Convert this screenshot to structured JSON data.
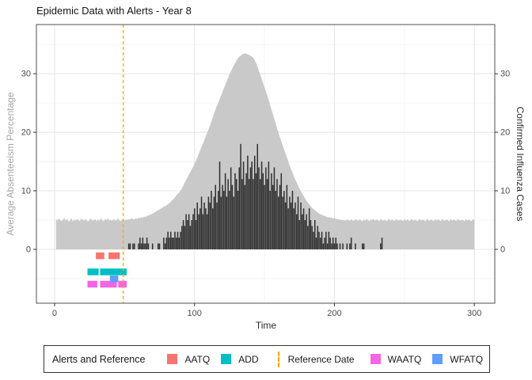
{
  "chart_data": {
    "type": "bar",
    "title": "Epidemic Data with Alerts - Year 8",
    "xlabel": "Time",
    "ylabel_left": "Average Absenteeism Percentage",
    "ylabel_right": "Confirmed Influenza Cases",
    "time_start": 1,
    "xlim": [
      -13,
      314.6
    ],
    "ylim": [
      -9.2,
      38.4
    ],
    "x_ticks": [
      0,
      100,
      200,
      300
    ],
    "x_minor": [
      50,
      150,
      250
    ],
    "y_ticks": [
      0,
      10,
      20,
      30
    ],
    "y_minor": [
      -5,
      5,
      15,
      25,
      35
    ],
    "grid": true,
    "legend_position": "bottom",
    "reference_date": 49,
    "alert_tile_height": 1.15,
    "series": [
      {
        "name": "Average Absenteeism Percentage",
        "subtype": "area",
        "axis": "left",
        "color": "#c9c9c9",
        "values": [
          5.2,
          4.9,
          5.3,
          5.0,
          4.8,
          5.1,
          5.3,
          4.9,
          5.2,
          4.7,
          5.0,
          5.3,
          4.8,
          5.1,
          4.9,
          5.2,
          5.0,
          4.8,
          5.3,
          5.1,
          4.9,
          5.2,
          5.0,
          4.7,
          5.1,
          5.3,
          4.9,
          5.0,
          5.2,
          4.8,
          5.1,
          4.9,
          5.3,
          5.0,
          4.8,
          5.2,
          5.0,
          5.3,
          4.9,
          5.1,
          4.8,
          5.2,
          5.0,
          4.9,
          5.3,
          5.1,
          4.8,
          5.0,
          5.2,
          4.9,
          5.1,
          5.0,
          5.2,
          5.1,
          5.3,
          5.2,
          5.1,
          5.3,
          5.2,
          5.4,
          5.3,
          5.5,
          5.4,
          5.6,
          5.5,
          5.7,
          5.8,
          5.9,
          6.0,
          6.1,
          6.2,
          6.4,
          6.5,
          6.7,
          6.8,
          7.0,
          7.1,
          7.3,
          7.4,
          7.5,
          7.7,
          7.9,
          8.1,
          8.4,
          8.6,
          8.9,
          9.2,
          9.5,
          9.7,
          10.0,
          10.4,
          10.9,
          11.4,
          11.9,
          12.3,
          12.8,
          13.2,
          13.7,
          14.1,
          14.6,
          15.1,
          15.7,
          16.3,
          16.9,
          17.5,
          18.1,
          18.7,
          19.3,
          19.9,
          20.5,
          21.1,
          21.8,
          22.5,
          23.2,
          23.9,
          24.5,
          25.1,
          25.7,
          26.3,
          26.9,
          27.5,
          28.1,
          28.7,
          29.3,
          29.9,
          30.4,
          30.9,
          31.4,
          31.8,
          32.2,
          32.6,
          32.9,
          33.1,
          33.3,
          33.4,
          33.5,
          33.4,
          33.3,
          33.2,
          33.1,
          32.9,
          32.7,
          32.3,
          31.8,
          31.2,
          30.5,
          29.8,
          29.1,
          28.4,
          27.7,
          27.0,
          26.3,
          25.5,
          24.7,
          23.9,
          23.1,
          22.3,
          21.5,
          20.7,
          19.9,
          19.2,
          18.5,
          17.8,
          17.1,
          16.4,
          15.7,
          15.0,
          14.3,
          13.7,
          13.1,
          12.5,
          11.9,
          11.4,
          10.9,
          10.4,
          9.9,
          9.5,
          9.1,
          8.7,
          8.3,
          8.0,
          7.7,
          7.4,
          7.1,
          6.9,
          6.7,
          6.5,
          6.3,
          6.1,
          6.0,
          5.9,
          5.8,
          5.7,
          5.6,
          5.5,
          5.5,
          5.4,
          5.4,
          5.3,
          5.3,
          5.2,
          5.2,
          5.1,
          5.1,
          5.0,
          5.0,
          5.0,
          4.9,
          5.1,
          5.0,
          4.9,
          5.1,
          5.0,
          4.8,
          5.2,
          5.0,
          4.9,
          5.1,
          5.0,
          4.8,
          5.1,
          4.9,
          5.2,
          5.0,
          4.8,
          5.1,
          5.0,
          5.2,
          4.9,
          5.1,
          5.0,
          4.8,
          5.2,
          5.0,
          4.9,
          5.1,
          4.8,
          5.0,
          5.2,
          4.9,
          5.1,
          5.0,
          4.8,
          5.2,
          5.0,
          4.9,
          5.1,
          5.0,
          4.8,
          5.2,
          4.9,
          5.1,
          5.0,
          4.8,
          5.2,
          5.0,
          4.9,
          5.1,
          4.8,
          5.0,
          5.2,
          4.9,
          5.1,
          5.0,
          4.8,
          5.2,
          5.0,
          4.9,
          5.1,
          5.0,
          4.8,
          5.2,
          4.9,
          5.1,
          5.0,
          4.8,
          5.2,
          5.0,
          4.9,
          5.1,
          5.0,
          4.8,
          5.2,
          4.9,
          5.1,
          5.0,
          4.8,
          5.2,
          5.0,
          4.9,
          5.1,
          5.0,
          4.8,
          5.2,
          4.9,
          5.1,
          5.0,
          4.8,
          5.2,
          5.0
        ]
      },
      {
        "name": "Confirmed Influenza Cases",
        "subtype": "bar",
        "axis": "right",
        "color": "#2f2f2f",
        "values": [
          0,
          0,
          0,
          0,
          0,
          0,
          0,
          0,
          0,
          0,
          0,
          0,
          0,
          0,
          0,
          0,
          0,
          0,
          0,
          0,
          0,
          0,
          0,
          0,
          0,
          0,
          0,
          0,
          0,
          0,
          0,
          0,
          0,
          0,
          0,
          0,
          0,
          0,
          0,
          0,
          0,
          0,
          0,
          0,
          0,
          0,
          0,
          0,
          0,
          0,
          0,
          0,
          1,
          1,
          0,
          1,
          1,
          0,
          0,
          1,
          2,
          1,
          2,
          1,
          1,
          2,
          1,
          0,
          0,
          1,
          0,
          0,
          0,
          1,
          1,
          0,
          0,
          2,
          1,
          2,
          3,
          2,
          3,
          2,
          2,
          3,
          2,
          3,
          2,
          3,
          4,
          5,
          4,
          6,
          5,
          6,
          4,
          5,
          6,
          7,
          5,
          8,
          6,
          7,
          9,
          6,
          8,
          7,
          6,
          9,
          8,
          10,
          7,
          9,
          11,
          8,
          10,
          15,
          9,
          11,
          10,
          13,
          9,
          12,
          10,
          14,
          11,
          9,
          13,
          12,
          10,
          14,
          18,
          12,
          15,
          11,
          13,
          16,
          12,
          14,
          15,
          12,
          16,
          13,
          18,
          14,
          12,
          15,
          13,
          11,
          14,
          12,
          15,
          10,
          13,
          11,
          14,
          10,
          12,
          9,
          11,
          13,
          9,
          10,
          8,
          11,
          7,
          9,
          8,
          10,
          7,
          8,
          6,
          9,
          5,
          8,
          6,
          7,
          5,
          6,
          4,
          7,
          5,
          4,
          3,
          5,
          2,
          4,
          3,
          2,
          3,
          1,
          2,
          3,
          1,
          3,
          2,
          1,
          2,
          1,
          2,
          1,
          0,
          1,
          0,
          1,
          0,
          0,
          1,
          0,
          1,
          2,
          0,
          0,
          1,
          0,
          0,
          0,
          0,
          1,
          1,
          0,
          0,
          0,
          0,
          0,
          0,
          0,
          0,
          0,
          0,
          0,
          1,
          2,
          0,
          0,
          0,
          0,
          0,
          0,
          0,
          0,
          0,
          0,
          0,
          0,
          0,
          0,
          0,
          0,
          0,
          0,
          0,
          0,
          0,
          0,
          0,
          0,
          0,
          0,
          0,
          0,
          0,
          0,
          0,
          0,
          0,
          0,
          0,
          0,
          0,
          0,
          0,
          0,
          0,
          0,
          0,
          0,
          0,
          0,
          0,
          0,
          0,
          0,
          0,
          0,
          0,
          0,
          0,
          0,
          0,
          0,
          0,
          0,
          0,
          0,
          0,
          0,
          0,
          0
        ]
      }
    ],
    "alerts": [
      {
        "name": "AATQ",
        "color": "#F8766D",
        "row_center": -1.1,
        "segments": [
          [
            30,
            35
          ],
          [
            39,
            46
          ]
        ]
      },
      {
        "name": "ADD",
        "color": "#00BFC4",
        "row_center": -3.85,
        "segments": [
          [
            24,
            31
          ],
          [
            33,
            51
          ]
        ]
      },
      {
        "name": "WAATQ",
        "color": "#F564E3",
        "row_center": -5.95,
        "segments": [
          [
            24,
            30
          ],
          [
            33,
            44
          ],
          [
            46,
            51
          ]
        ]
      },
      {
        "name": "WFATQ",
        "color": "#619CFF",
        "row_center": -5.05,
        "segments": [
          [
            40,
            45
          ]
        ]
      }
    ],
    "style": {
      "grid_major": "#e4e4e4",
      "grid_minor": "#f1f1f1",
      "panel_border": "#4f4f4f",
      "tick_mark": "#333333",
      "tick_label": "#4d4d4d",
      "reference_line": "#FFA500",
      "area_fill": "#c9c9c9",
      "bar_fill": "#2f2f2f"
    }
  },
  "legend": {
    "title": "Alerts and Reference",
    "items": [
      {
        "label": "AATQ",
        "color": "#F8766D",
        "key": "square"
      },
      {
        "label": "ADD",
        "color": "#00BFC4",
        "key": "square"
      },
      {
        "label": "Reference Date",
        "color": "#FFA500",
        "key": "dashed-vline"
      },
      {
        "label": "WAATQ",
        "color": "#F564E3",
        "key": "square"
      },
      {
        "label": "WFATQ",
        "color": "#619CFF",
        "key": "square"
      }
    ]
  }
}
